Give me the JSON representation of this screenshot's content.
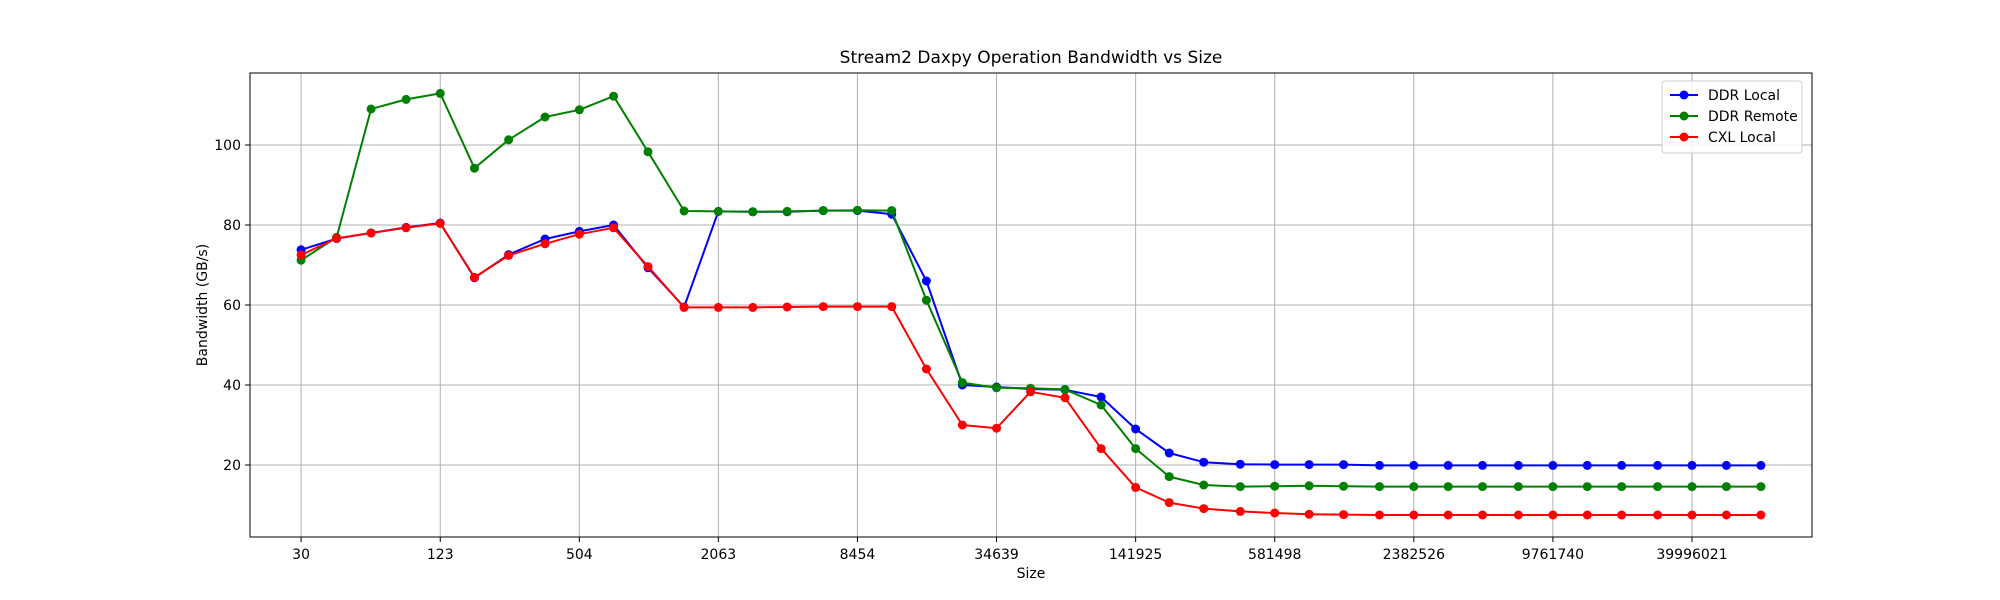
{
  "chart_data": {
    "type": "line",
    "title": "Stream2 Daxpy Operation Bandwidth vs Size",
    "xlabel": "Size",
    "ylabel": "Bandwidth (GB/s)",
    "x_scale": "log",
    "x": [
      30,
      43,
      61,
      87,
      123,
      174,
      246,
      356,
      504,
      713,
      1011,
      1458,
      2063,
      2926,
      4145,
      5975,
      8454,
      11970,
      17010,
      24489,
      34639,
      48909,
      69335,
      100016,
      141925,
      199526,
      283112,
      410005,
      581498,
      824290,
      1168843,
      1682209,
      2382526,
      3375822,
      4781506,
      6878489,
      9761740,
      13835613,
      19601616,
      28223962,
      39996021,
      56706271,
      80447958
    ],
    "x_ticks": [
      30,
      123,
      504,
      2063,
      8454,
      34639,
      141925,
      581498,
      2382526,
      9761740,
      39996021
    ],
    "xlim": [
      30,
      80447958
    ],
    "ylim": [
      2,
      118
    ],
    "y_ticks": [
      20,
      40,
      60,
      80,
      100
    ],
    "grid": true,
    "legend_position": "top-right",
    "series": [
      {
        "name": "DDR Local",
        "color": "#0000ff",
        "values": [
          73.8,
          76.6,
          78.0,
          79.4,
          80.5,
          66.8,
          72.6,
          76.5,
          78.4,
          80.0,
          69.3,
          59.5,
          83.4,
          83.3,
          83.3,
          83.6,
          83.6,
          82.7,
          66.0,
          40.0,
          39.5,
          39.0,
          38.8,
          37.0,
          29.0,
          23.0,
          20.7,
          20.2,
          20.1,
          20.1,
          20.1,
          19.9,
          19.9,
          19.9,
          19.9,
          19.9,
          19.9,
          19.9,
          19.9,
          19.9,
          19.9,
          19.9,
          19.9
        ]
      },
      {
        "name": "DDR Remote",
        "color": "#008000",
        "values": [
          71.2,
          76.9,
          109.0,
          111.4,
          112.9,
          94.2,
          101.3,
          107.0,
          108.8,
          112.2,
          98.3,
          83.5,
          83.4,
          83.3,
          83.4,
          83.6,
          83.7,
          83.6,
          61.2,
          40.6,
          39.3,
          39.2,
          38.9,
          35.0,
          24.1,
          17.1,
          15.0,
          14.6,
          14.7,
          14.8,
          14.7,
          14.6,
          14.6,
          14.6,
          14.6,
          14.6,
          14.6,
          14.6,
          14.6,
          14.6,
          14.6,
          14.6,
          14.6
        ]
      },
      {
        "name": "CXL Local",
        "color": "#ff0000",
        "values": [
          72.5,
          76.7,
          78.0,
          79.3,
          80.4,
          66.9,
          72.4,
          75.3,
          77.7,
          79.3,
          69.6,
          59.4,
          59.4,
          59.4,
          59.5,
          59.6,
          59.6,
          59.6,
          44.0,
          30.0,
          29.2,
          38.3,
          36.8,
          24.1,
          14.4,
          10.6,
          9.1,
          8.4,
          8.0,
          7.7,
          7.6,
          7.5,
          7.5,
          7.5,
          7.5,
          7.5,
          7.5,
          7.5,
          7.5,
          7.5,
          7.5,
          7.5,
          7.5
        ]
      }
    ]
  }
}
